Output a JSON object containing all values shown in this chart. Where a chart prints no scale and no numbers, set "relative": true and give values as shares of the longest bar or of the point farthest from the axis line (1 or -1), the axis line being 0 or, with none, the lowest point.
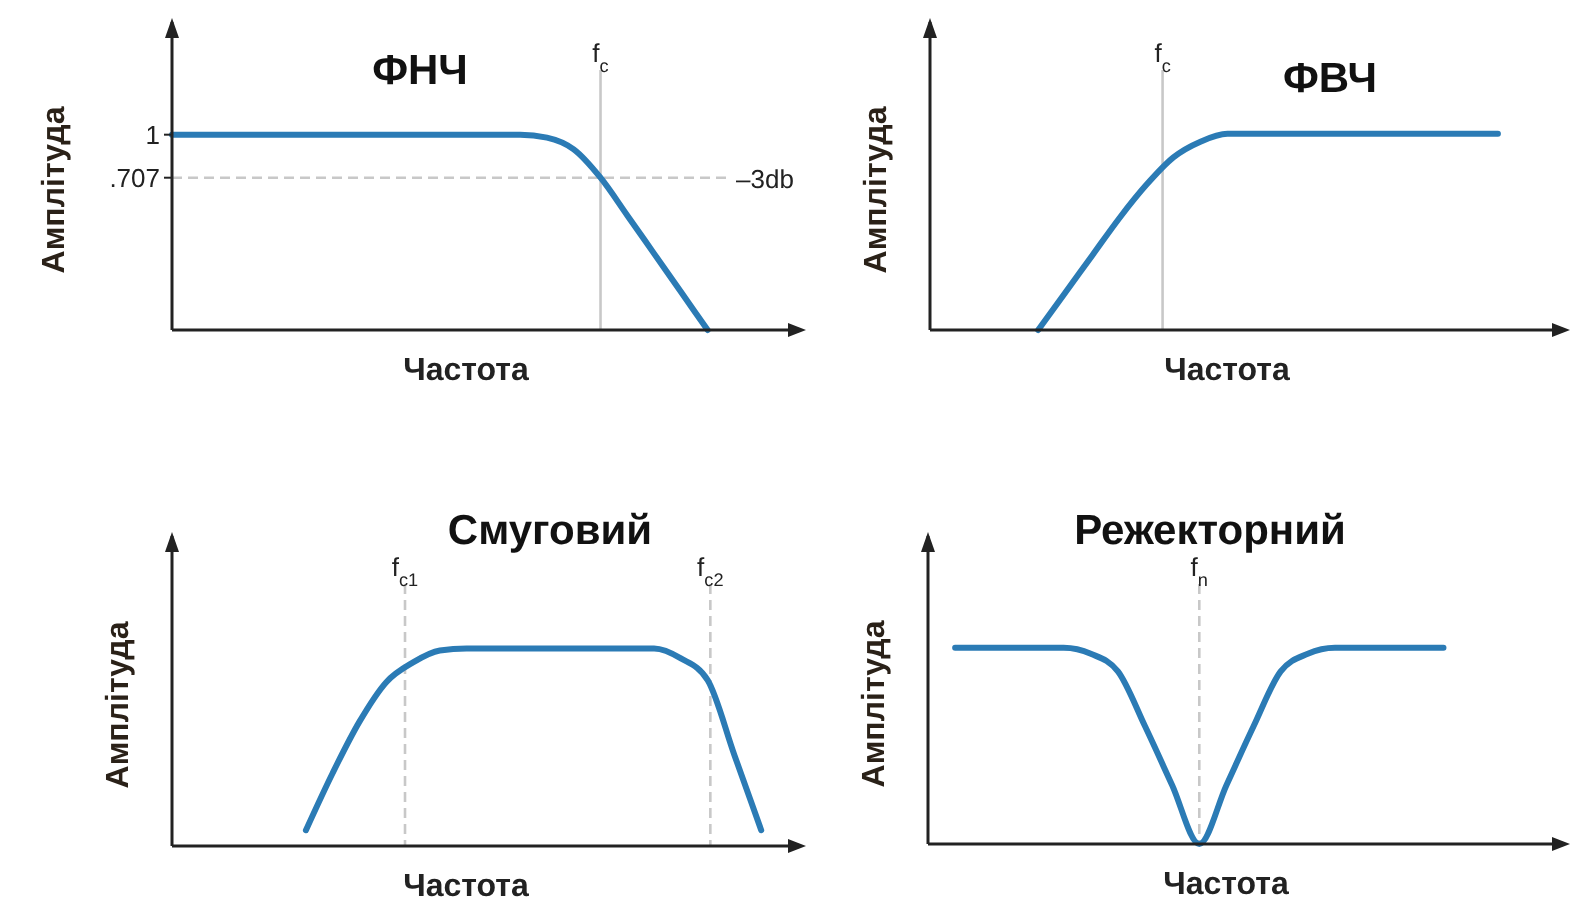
{
  "chart_data": [
    {
      "type": "line",
      "title": "ФНЧ",
      "xlabel": "Частота",
      "ylabel": "Амплітуда",
      "categories": [
        null,
        null,
        null,
        null,
        null,
        null,
        null,
        null,
        null,
        null,
        null,
        null,
        null,
        null,
        null,
        null,
        null,
        null,
        null,
        null,
        null,
        null,
        null,
        null
      ],
      "ylim": [
        -0.33,
        1.74
      ],
      "yticks": [
        {
          "value": 1,
          "label": "1"
        },
        {
          "value": 0.707,
          "label": ".707"
        }
      ],
      "tick_labels": "y",
      "series": [
        {
          "color": "#2b7bb5",
          "values": [
            1,
            1,
            1,
            1,
            1,
            1,
            1,
            1,
            1,
            1,
            1,
            1,
            1,
            1,
            0.98,
            0.9,
            0.707,
            0.45,
            0.19,
            -0.07,
            -0.33,
            null,
            null,
            null
          ]
        }
      ],
      "annotations": [
        "f$_{c}$"
      ],
      "ref_lines": [
        {
          "axis": "y",
          "value": 0.707,
          "label": "–3db",
          "color": "#c8c8c8",
          "line_style": "dashed"
        }
      ]
    },
    {
      "type": "line",
      "title": "ФВЧ",
      "xlabel": "Частота",
      "ylabel": "Амплітуда",
      "categories": [
        null,
        null,
        null,
        null,
        null,
        null,
        null,
        null,
        null,
        null,
        null,
        null,
        null,
        null,
        null,
        null,
        null,
        null,
        null,
        null,
        null,
        null,
        null,
        null
      ],
      "relative": true,
      "tick_labels": false,
      "series": [
        {
          "color": "#2b7bb5",
          "values": [
            null,
            null,
            null,
            null,
            0,
            0.19,
            0.38,
            0.57,
            0.74,
            0.88,
            0.96,
            1,
            1,
            1,
            1,
            1,
            1,
            1,
            1,
            1,
            1,
            1,
            null,
            null
          ]
        }
      ],
      "annotations": [
        "f$_{c}$"
      ]
    },
    {
      "type": "line",
      "title": "Смуговий",
      "xlabel": "Частота",
      "ylabel": "Амплітуда",
      "categories": [
        null,
        null,
        null,
        null,
        null,
        null,
        null,
        null,
        null,
        null,
        null,
        null,
        null,
        null,
        null,
        null,
        null,
        null,
        null,
        null,
        null,
        null,
        null,
        null
      ],
      "relative": true,
      "tick_labels": false,
      "series": [
        {
          "color": "#2b7bb5",
          "values": [
            null,
            null,
            null,
            null,
            null,
            0.08,
            0.37,
            0.63,
            0.83,
            0.93,
            0.99,
            1,
            1,
            1,
            1,
            1,
            1,
            1,
            1,
            0.95,
            0.84,
            0.46,
            0.08,
            null
          ]
        }
      ],
      "annotations": [
        "f$_{c1}$",
        "f$_{c2}$"
      ]
    },
    {
      "type": "line",
      "title": "Режекторний",
      "xlabel": "Частота",
      "ylabel": "Амплітуда",
      "categories": [
        null,
        null,
        null,
        null,
        null,
        null,
        null,
        null,
        null,
        null,
        null,
        null,
        null,
        null,
        null,
        null,
        null,
        null,
        null,
        null,
        null,
        null,
        null,
        null
      ],
      "relative": true,
      "tick_labels": false,
      "series": [
        {
          "color": "#2b7bb5",
          "values": [
            null,
            1,
            1,
            1,
            1,
            1,
            0.97,
            0.88,
            0.6,
            0.3,
            0,
            0.3,
            0.6,
            0.88,
            0.97,
            1,
            1,
            1,
            1,
            1,
            null,
            null,
            null,
            null
          ]
        }
      ],
      "annotations": [
        "f$_{n}$"
      ]
    }
  ]
}
